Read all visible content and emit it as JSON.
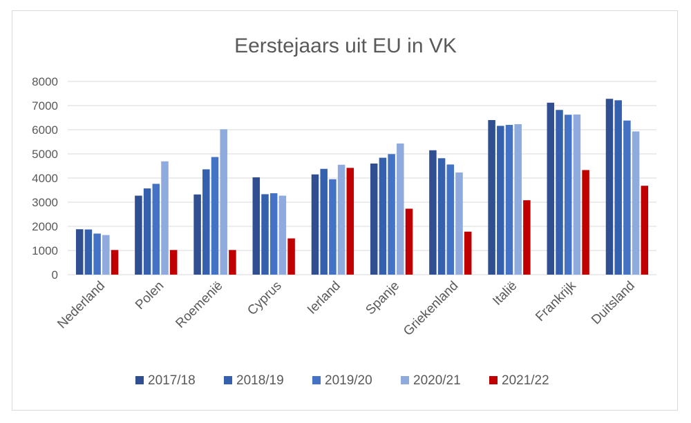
{
  "chart_data": {
    "type": "bar",
    "title": "Eerstejaars uit EU in VK",
    "xlabel": "",
    "ylabel": "",
    "ylim": [
      0,
      8000
    ],
    "yticks": [
      0,
      1000,
      2000,
      3000,
      4000,
      5000,
      6000,
      7000,
      8000
    ],
    "grid": true,
    "legend_position": "bottom",
    "categories": [
      "Nederland",
      "Polen",
      "Roemenië",
      "Cyprus",
      "Ierland",
      "Spanje",
      "Griekenland",
      "Italië",
      "Frankrijk",
      "Duitsland"
    ],
    "series": [
      {
        "name": "2017/18",
        "color": "#2f4f91",
        "values": [
          1880,
          3270,
          3320,
          4030,
          4150,
          4600,
          5150,
          6400,
          7120,
          7280
        ]
      },
      {
        "name": "2018/19",
        "color": "#3560ad",
        "values": [
          1870,
          3570,
          4360,
          3330,
          4380,
          4840,
          4820,
          6160,
          6820,
          7220
        ]
      },
      {
        "name": "2019/20",
        "color": "#4472c4",
        "values": [
          1700,
          3760,
          4870,
          3370,
          3950,
          4990,
          4560,
          6200,
          6620,
          6380
        ]
      },
      {
        "name": "2020/21",
        "color": "#8faadc",
        "values": [
          1640,
          4690,
          6020,
          3270,
          4550,
          5430,
          4230,
          6230,
          6630,
          5930
        ]
      },
      {
        "name": "2021/22",
        "color": "#c00000",
        "values": [
          1020,
          1020,
          1020,
          1500,
          4420,
          2730,
          1780,
          3080,
          4330,
          3680
        ]
      }
    ]
  }
}
